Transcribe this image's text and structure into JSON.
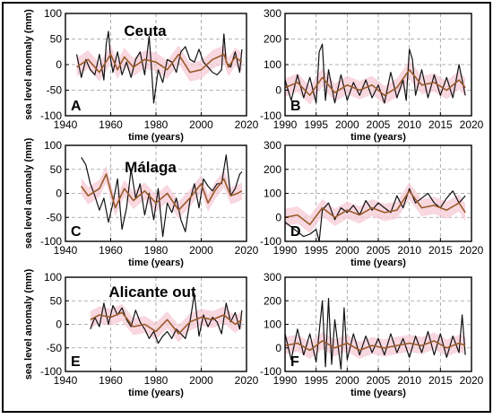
{
  "colors": {
    "observed": "#111111",
    "model": "#9a5a2a",
    "band": "#f5c9d4",
    "grid": "#9a9a9a"
  },
  "chart_data": [
    {
      "id": "A",
      "type": "line",
      "title": "Ceuta",
      "panel_label": "A",
      "xlabel": "time (years)",
      "ylabel": "sea level anomaly (mm)",
      "xlim": [
        1940,
        2020
      ],
      "ylim": [
        -100,
        100
      ],
      "xticks": [
        "1940",
        "1960",
        "1980",
        "2000",
        "2020"
      ],
      "yticks": [
        "-100",
        "-50",
        "0",
        "50",
        "100"
      ],
      "grid": true,
      "series": [
        {
          "role": "observed",
          "x": [
            1945,
            1947,
            1949,
            1951,
            1953,
            1955,
            1957,
            1958,
            1959,
            1960,
            1961,
            1963,
            1965,
            1967,
            1969,
            1971,
            1973,
            1975,
            1977,
            1978,
            1979,
            1981,
            1983,
            1985,
            1987,
            1989,
            1991,
            1993,
            1995,
            1997,
            1999,
            2001,
            2003,
            2005,
            2007,
            2009,
            2010,
            2011,
            2013,
            2015,
            2017,
            2018
          ],
          "y": [
            20,
            -25,
            10,
            -10,
            -20,
            20,
            -30,
            40,
            65,
            10,
            -15,
            25,
            -20,
            5,
            -25,
            10,
            25,
            -20,
            55,
            -5,
            -75,
            -10,
            -35,
            10,
            5,
            -15,
            25,
            35,
            10,
            5,
            30,
            5,
            -5,
            -15,
            -20,
            -10,
            60,
            5,
            -5,
            25,
            -15,
            30
          ]
        },
        {
          "role": "model",
          "x": [
            1945,
            1950,
            1955,
            1960,
            1963,
            1966,
            1970,
            1975,
            1980,
            1985,
            1990,
            1995,
            2000,
            2005,
            2010,
            2012,
            2015,
            2018
          ],
          "y": [
            -5,
            10,
            -15,
            20,
            -10,
            15,
            -5,
            10,
            5,
            -10,
            20,
            -15,
            -10,
            10,
            20,
            -5,
            15,
            5
          ]
        }
      ]
    },
    {
      "id": "B",
      "type": "line",
      "title": "",
      "panel_label": "B",
      "xlabel": "time (years)",
      "ylabel": "",
      "xlim": [
        1990,
        2020
      ],
      "ylim": [
        -100,
        300
      ],
      "xticks": [
        "1990",
        "1995",
        "2000",
        "2005",
        "2010",
        "2015",
        "2020"
      ],
      "yticks": [
        "-100",
        "0",
        "100",
        "200",
        "300"
      ],
      "grid": true,
      "series": [
        {
          "role": "observed",
          "x": [
            1990,
            1991,
            1992,
            1993,
            1994,
            1995,
            1995.5,
            1996,
            1996.5,
            1997,
            1998,
            1999,
            2000,
            2001,
            2002,
            2003,
            2004,
            2005,
            2006,
            2007,
            2008,
            2009,
            2009.5,
            2010,
            2010.5,
            2011,
            2012,
            2013,
            2014,
            2015,
            2016,
            2017,
            2018,
            2019
          ],
          "y": [
            40,
            -40,
            60,
            -30,
            50,
            -50,
            150,
            180,
            -40,
            80,
            -50,
            60,
            -40,
            30,
            -20,
            40,
            -30,
            20,
            -50,
            70,
            -30,
            40,
            -40,
            160,
            120,
            -20,
            80,
            -30,
            60,
            -20,
            50,
            -30,
            100,
            -20
          ]
        },
        {
          "role": "model",
          "x": [
            1990,
            1992,
            1994,
            1996,
            1998,
            2000,
            2002,
            2004,
            2006,
            2008,
            2010,
            2012,
            2014,
            2016,
            2018,
            2019
          ],
          "y": [
            10,
            30,
            -20,
            50,
            -10,
            20,
            0,
            20,
            -20,
            10,
            80,
            20,
            30,
            0,
            40,
            10
          ]
        }
      ]
    },
    {
      "id": "C",
      "type": "line",
      "title": "Málaga",
      "panel_label": "C",
      "xlabel": "time (years)",
      "ylabel": "sea level anomaly (mm)",
      "xlim": [
        1940,
        2020
      ],
      "ylim": [
        -100,
        100
      ],
      "xticks": [
        "1940",
        "1960",
        "1980",
        "2000",
        "2020"
      ],
      "yticks": [
        "-100",
        "-50",
        "0",
        "50",
        "100"
      ],
      "grid": true,
      "series": [
        {
          "role": "observed",
          "x": [
            1947,
            1949,
            1951,
            1953,
            1955,
            1957,
            1959,
            1961,
            1963,
            1965,
            1967,
            1969,
            1971,
            1973,
            1975,
            1977,
            1979,
            1981,
            1983,
            1985,
            1987,
            1989,
            1991,
            1993,
            1995,
            1997,
            1999,
            2001,
            2003,
            2005,
            2007,
            2009,
            2011,
            2013,
            2015,
            2017,
            2018
          ],
          "y": [
            75,
            60,
            20,
            -5,
            -35,
            -10,
            -60,
            -20,
            30,
            -75,
            -30,
            50,
            -10,
            20,
            -45,
            0,
            -55,
            10,
            -90,
            -20,
            -40,
            -10,
            -55,
            -80,
            -15,
            20,
            -30,
            30,
            15,
            5,
            20,
            20,
            80,
            -5,
            10,
            40,
            45
          ]
        },
        {
          "role": "model",
          "x": [
            1947,
            1950,
            1955,
            1958,
            1962,
            1966,
            1970,
            1975,
            1980,
            1985,
            1990,
            1995,
            2000,
            2003,
            2006,
            2010,
            2013,
            2016,
            2018
          ],
          "y": [
            15,
            -5,
            10,
            40,
            -30,
            10,
            -15,
            5,
            -20,
            0,
            -35,
            -10,
            20,
            -20,
            5,
            30,
            -5,
            0,
            5
          ]
        }
      ]
    },
    {
      "id": "D",
      "type": "line",
      "title": "",
      "panel_label": "D",
      "xlabel": "time (years)",
      "ylabel": "",
      "xlim": [
        1990,
        2020
      ],
      "ylim": [
        -100,
        300
      ],
      "xticks": [
        "1990",
        "1995",
        "2000",
        "2005",
        "2010",
        "2015",
        "2020"
      ],
      "yticks": [
        "-100",
        "0",
        "100",
        "200",
        "300"
      ],
      "grid": true,
      "series": [
        {
          "role": "observed",
          "x": [
            1990,
            1991,
            1992,
            1993,
            1994,
            1995,
            1995.5,
            1996,
            1997,
            1998,
            1999,
            2000,
            2001,
            2002,
            2003,
            2004,
            2005,
            2006,
            2007,
            2008,
            2009,
            2010,
            2011,
            2012,
            2013,
            2014,
            2015,
            2016,
            2017,
            2018,
            2019
          ],
          "y": [
            -20,
            -40,
            -60,
            -80,
            -70,
            -50,
            -100,
            30,
            60,
            -10,
            40,
            20,
            50,
            10,
            70,
            30,
            60,
            40,
            20,
            90,
            40,
            120,
            60,
            80,
            100,
            60,
            40,
            80,
            110,
            60,
            90
          ]
        },
        {
          "role": "model",
          "x": [
            1990,
            1992,
            1994,
            1996,
            1998,
            2000,
            2002,
            2004,
            2006,
            2008,
            2010,
            2012,
            2014,
            2016,
            2018,
            2019
          ],
          "y": [
            0,
            10,
            -30,
            40,
            0,
            30,
            10,
            40,
            20,
            30,
            110,
            40,
            50,
            30,
            60,
            20
          ]
        }
      ]
    },
    {
      "id": "E",
      "type": "line",
      "title": "Alicante out",
      "panel_label": "E",
      "xlabel": "time (years)",
      "ylabel": "sea level anomaly (mm)",
      "xlim": [
        1940,
        2020
      ],
      "ylim": [
        -100,
        100
      ],
      "xticks": [
        "1940",
        "1960",
        "1980",
        "2000",
        "2020"
      ],
      "yticks": [
        "-100",
        "-50",
        "0",
        "50",
        "100"
      ],
      "grid": true,
      "series": [
        {
          "role": "observed",
          "x": [
            1951,
            1953,
            1955,
            1957,
            1959,
            1961,
            1963,
            1965,
            1967,
            1969,
            1971,
            1973,
            1975,
            1977,
            1979,
            1981,
            1983,
            1985,
            1987,
            1989,
            1991,
            1993,
            1995,
            1997,
            1999,
            2001,
            2003,
            2005,
            2007,
            2009,
            2011,
            2013,
            2015,
            2017,
            2018
          ],
          "y": [
            -10,
            15,
            -5,
            45,
            0,
            40,
            20,
            35,
            10,
            -5,
            30,
            5,
            -10,
            -30,
            -15,
            -40,
            -25,
            -15,
            -30,
            -10,
            -20,
            -30,
            5,
            65,
            -25,
            20,
            -5,
            15,
            5,
            -20,
            45,
            5,
            25,
            -10,
            30
          ]
        },
        {
          "role": "model",
          "x": [
            1951,
            1955,
            1960,
            1965,
            1970,
            1975,
            1980,
            1985,
            1990,
            1995,
            2000,
            2005,
            2010,
            2015,
            2018
          ],
          "y": [
            10,
            20,
            15,
            25,
            -5,
            0,
            -15,
            10,
            -20,
            5,
            15,
            10,
            20,
            0,
            10
          ]
        }
      ]
    },
    {
      "id": "F",
      "type": "line",
      "title": "",
      "panel_label": "F",
      "xlabel": "time (years)",
      "ylabel": "",
      "xlim": [
        1990,
        2020
      ],
      "ylim": [
        -100,
        300
      ],
      "xticks": [
        "1990",
        "1995",
        "2000",
        "2005",
        "2010",
        "2015",
        "2020"
      ],
      "yticks": [
        "-100",
        "0",
        "100",
        "200",
        "300"
      ],
      "grid": true,
      "series": [
        {
          "role": "observed",
          "x": [
            1990,
            1991,
            1992,
            1993,
            1994,
            1995,
            1996,
            1996.5,
            1997,
            1997.5,
            1998,
            1999,
            1999.5,
            2000,
            2001,
            2002,
            2003,
            2004,
            2005,
            2006,
            2007,
            2008,
            2009,
            2010,
            2011,
            2012,
            2013,
            2014,
            2015,
            2016,
            2017,
            2018,
            2018.5,
            2019
          ],
          "y": [
            60,
            -50,
            80,
            -30,
            60,
            -60,
            200,
            -80,
            210,
            -70,
            120,
            -90,
            170,
            -50,
            60,
            -30,
            50,
            -20,
            40,
            -30,
            60,
            -20,
            40,
            -40,
            50,
            -20,
            70,
            -30,
            60,
            -40,
            50,
            -20,
            140,
            -30
          ]
        },
        {
          "role": "model",
          "x": [
            1990,
            1992,
            1994,
            1996,
            1998,
            2000,
            2002,
            2004,
            2006,
            2008,
            2010,
            2012,
            2014,
            2016,
            2018,
            2019
          ],
          "y": [
            10,
            20,
            -10,
            30,
            0,
            20,
            -10,
            10,
            0,
            10,
            20,
            10,
            30,
            0,
            20,
            10
          ]
        }
      ]
    }
  ]
}
